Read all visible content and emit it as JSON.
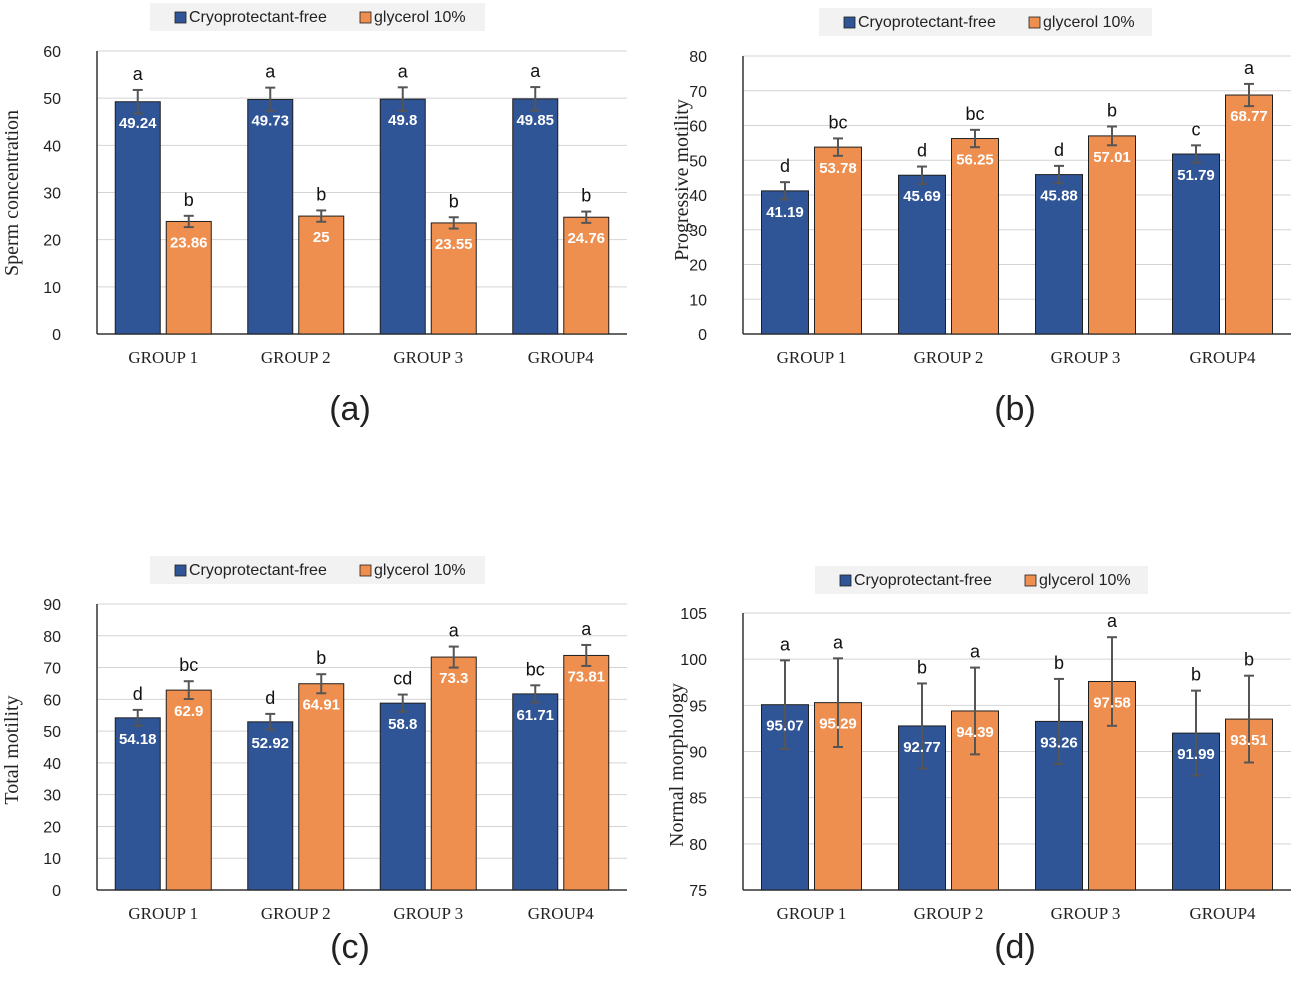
{
  "colors": {
    "blue": "#2f5597",
    "orange": "#ee8f4f",
    "grid": "#d4d4d4",
    "errbar": "#555555",
    "legend_bg": "#f2f2f2"
  },
  "chart_data": [
    {
      "type": "bar",
      "caption": "(a)",
      "ylabel": "Sperm concentration",
      "ylim": [
        0,
        60
      ],
      "yticks": [
        0,
        10,
        20,
        30,
        40,
        50,
        60
      ],
      "categories": [
        "GROUP 1",
        "GROUP 2",
        "GROUP 3",
        "GROUP4"
      ],
      "legend": "top",
      "grid": true,
      "series": [
        {
          "name": "Cryoprotectant-free",
          "values": [
            49.24,
            49.73,
            49.8,
            49.85
          ],
          "labels": [
            "49.24",
            "49.73",
            "49.8",
            "49.85"
          ],
          "errors": [
            2.5,
            2.5,
            2.5,
            2.5
          ],
          "letters": [
            "a",
            "a",
            "a",
            "a"
          ]
        },
        {
          "name": "glycerol 10%",
          "values": [
            23.86,
            25,
            23.55,
            24.76
          ],
          "labels": [
            "23.86",
            "25",
            "23.55",
            "24.76"
          ],
          "errors": [
            1.2,
            1.2,
            1.2,
            1.2
          ],
          "letters": [
            "b",
            "b",
            "b",
            "b"
          ]
        }
      ]
    },
    {
      "type": "bar",
      "caption": "(b)",
      "ylabel": "Progressive motility",
      "ylim": [
        0,
        80
      ],
      "yticks": [
        0,
        10,
        20,
        30,
        40,
        50,
        60,
        70,
        80
      ],
      "categories": [
        "GROUP 1",
        "GROUP 2",
        "GROUP 3",
        "GROUP4"
      ],
      "legend": "top",
      "grid": true,
      "series": [
        {
          "name": "Cryoprotectant-free",
          "values": [
            41.19,
            45.69,
            45.88,
            51.79
          ],
          "labels": [
            "41.19",
            "45.69",
            "45.88",
            "51.79"
          ],
          "errors": [
            2.5,
            2.5,
            2.5,
            2.5
          ],
          "letters": [
            "d",
            "d",
            "d",
            "c"
          ]
        },
        {
          "name": "glycerol 10%",
          "values": [
            53.78,
            56.25,
            57.01,
            68.77
          ],
          "labels": [
            "53.78",
            "56.25",
            "57.01",
            "68.77"
          ],
          "errors": [
            2.5,
            2.5,
            2.7,
            3.2
          ],
          "letters": [
            "bc",
            "bc",
            "b",
            "a"
          ]
        }
      ]
    },
    {
      "type": "bar",
      "caption": "(c)",
      "ylabel": "Total motility",
      "ylim": [
        0,
        90
      ],
      "yticks": [
        0,
        10,
        20,
        30,
        40,
        50,
        60,
        70,
        80,
        90
      ],
      "categories": [
        "GROUP 1",
        "GROUP 2",
        "GROUP 3",
        "GROUP4"
      ],
      "legend": "top",
      "grid": true,
      "series": [
        {
          "name": "Cryoprotectant-free",
          "values": [
            54.18,
            52.92,
            58.8,
            61.71
          ],
          "labels": [
            "54.18",
            "52.92",
            "58.8",
            "61.71"
          ],
          "errors": [
            2.5,
            2.5,
            2.7,
            2.7
          ],
          "letters": [
            "d",
            "d",
            "cd",
            "bc"
          ]
        },
        {
          "name": "glycerol 10%",
          "values": [
            62.9,
            64.91,
            73.3,
            73.81
          ],
          "labels": [
            "62.9",
            "64.91",
            "73.3",
            "73.81"
          ],
          "errors": [
            2.8,
            3.0,
            3.3,
            3.3
          ],
          "letters": [
            "bc",
            "b",
            "a",
            "a"
          ]
        }
      ]
    },
    {
      "type": "bar",
      "caption": "(d)",
      "ylabel": "Normal morphology",
      "ylim": [
        75,
        105
      ],
      "yticks": [
        75,
        80,
        85,
        90,
        95,
        100,
        105
      ],
      "categories": [
        "GROUP 1",
        "GROUP 2",
        "GROUP 3",
        "GROUP4"
      ],
      "legend": "top",
      "grid": true,
      "series": [
        {
          "name": "Cryoprotectant-free",
          "values": [
            95.07,
            92.77,
            93.26,
            91.99
          ],
          "labels": [
            "95.07",
            "92.77",
            "93.26",
            "91.99"
          ],
          "errors": [
            4.8,
            4.6,
            4.6,
            4.6
          ],
          "letters": [
            "a",
            "b",
            "b",
            "b"
          ]
        },
        {
          "name": "glycerol 10%",
          "values": [
            95.29,
            94.39,
            97.58,
            93.51
          ],
          "labels": [
            "95.29",
            "94.39",
            "97.58",
            "93.51"
          ],
          "errors": [
            4.8,
            4.7,
            4.8,
            4.7
          ],
          "letters": [
            "a",
            "a",
            "a",
            "b"
          ]
        }
      ]
    }
  ]
}
